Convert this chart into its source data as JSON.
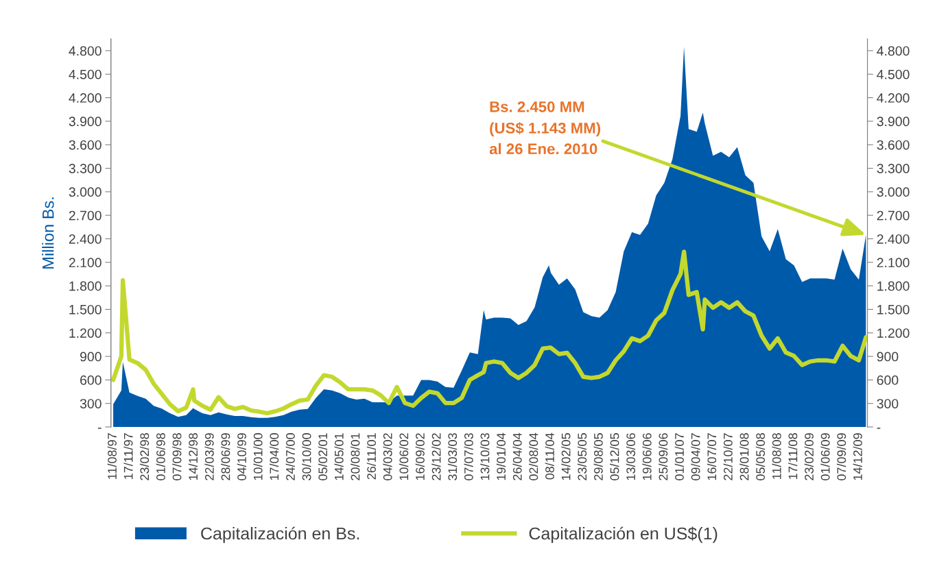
{
  "chart_data": {
    "type": "area",
    "ylabel": "Million Bs.",
    "x": [
      "1997-08-11",
      "1997-09-29",
      "1997-10-08",
      "1997-11-17",
      "1998-01-05",
      "1998-02-23",
      "1998-04-13",
      "1998-06-01",
      "1998-07-20",
      "1998-09-07",
      "1998-10-26",
      "1998-12-07",
      "1998-12-14",
      "1999-02-01",
      "1999-03-22",
      "1999-05-10",
      "1999-06-28",
      "1999-08-16",
      "1999-10-04",
      "1999-11-22",
      "2000-01-10",
      "2000-02-28",
      "2000-04-17",
      "2000-06-05",
      "2000-07-24",
      "2000-09-11",
      "2000-10-30",
      "2000-12-18",
      "2001-02-05",
      "2001-03-26",
      "2001-05-14",
      "2001-07-02",
      "2001-08-20",
      "2001-10-08",
      "2001-11-26",
      "2002-01-14",
      "2002-03-04",
      "2002-04-22",
      "2002-06-10",
      "2002-07-29",
      "2002-09-16",
      "2002-11-04",
      "2002-12-23",
      "2003-02-10",
      "2003-03-31",
      "2003-05-19",
      "2003-07-07",
      "2003-08-25",
      "2003-09-29",
      "2003-10-13",
      "2003-12-01",
      "2004-01-19",
      "2004-03-08",
      "2004-04-26",
      "2004-06-14",
      "2004-08-02",
      "2004-09-20",
      "2004-10-27",
      "2004-11-08",
      "2004-12-27",
      "2005-02-14",
      "2005-04-04",
      "2005-05-23",
      "2005-07-11",
      "2005-08-29",
      "2005-10-17",
      "2005-12-05",
      "2006-01-23",
      "2006-03-13",
      "2006-05-01",
      "2006-06-19",
      "2006-08-07",
      "2006-09-25",
      "2006-11-13",
      "2007-01-01",
      "2007-01-22",
      "2007-02-19",
      "2007-04-09",
      "2007-05-16",
      "2007-05-28",
      "2007-07-16",
      "2007-09-03",
      "2007-10-22",
      "2007-12-10",
      "2008-01-28",
      "2008-03-17",
      "2008-05-05",
      "2008-06-23",
      "2008-08-11",
      "2008-09-29",
      "2008-11-17",
      "2009-01-05",
      "2009-02-23",
      "2009-04-13",
      "2009-06-01",
      "2009-07-20",
      "2009-09-07",
      "2009-10-26",
      "2009-12-14",
      "2010-01-26"
    ],
    "series": [
      {
        "name": "Capitalización en Bs.",
        "color": "#005aaa",
        "values": [
          290,
          465,
          830,
          440,
          395,
          360,
          270,
          235,
          175,
          130,
          150,
          240,
          230,
          175,
          150,
          185,
          160,
          140,
          140,
          125,
          115,
          115,
          130,
          150,
          195,
          220,
          230,
          370,
          480,
          465,
          430,
          375,
          350,
          360,
          315,
          315,
          315,
          400,
          400,
          400,
          600,
          600,
          580,
          510,
          500,
          720,
          950,
          930,
          1490,
          1370,
          1395,
          1395,
          1385,
          1300,
          1350,
          1525,
          1910,
          2060,
          1965,
          1815,
          1895,
          1755,
          1465,
          1415,
          1395,
          1490,
          1720,
          2240,
          2485,
          2450,
          2595,
          2955,
          3115,
          3415,
          3970,
          4850,
          3800,
          3765,
          4010,
          3870,
          3460,
          3510,
          3440,
          3570,
          3210,
          3115,
          2430,
          2240,
          2525,
          2140,
          2060,
          1850,
          1895,
          1895,
          1895,
          1880,
          2275,
          2010,
          1880,
          2450
        ]
      },
      {
        "name": "Capitalización en US$(1)",
        "type": "line",
        "axis": "y2",
        "color": "#c3d82e",
        "values": [
          600,
          900,
          1870,
          860,
          815,
          730,
          550,
          420,
          290,
          200,
          245,
          480,
          335,
          270,
          220,
          380,
          265,
          230,
          255,
          210,
          195,
          175,
          200,
          235,
          290,
          335,
          350,
          525,
          660,
          640,
          570,
          480,
          480,
          480,
          465,
          405,
          305,
          510,
          305,
          270,
          370,
          450,
          430,
          305,
          305,
          370,
          600,
          660,
          700,
          815,
          835,
          815,
          690,
          625,
          690,
          790,
          1000,
          1010,
          1010,
          930,
          945,
          815,
          640,
          625,
          640,
          690,
          850,
          965,
          1130,
          1095,
          1165,
          1360,
          1455,
          1745,
          1950,
          2235,
          1685,
          1720,
          1245,
          1625,
          1520,
          1590,
          1520,
          1590,
          1475,
          1420,
          1165,
          1000,
          1130,
          950,
          905,
          790,
          835,
          850,
          850,
          835,
          1035,
          905,
          850,
          1143
        ]
      }
    ],
    "annotations": [
      {
        "text": "Bs. 2.450 MM\n(US$ 1.143 MM)\nal 26 Ene. 2010",
        "x": "2010-01-26",
        "y": 2450
      }
    ],
    "xlim": [
      "1997-07-28",
      "2010-02-04"
    ],
    "xticks": [
      {
        "value": "1997-08-11",
        "label": "11/08/97"
      },
      {
        "value": "1997-11-17",
        "label": "17/11/97"
      },
      {
        "value": "1998-02-23",
        "label": "23/02/98"
      },
      {
        "value": "1998-06-01",
        "label": "01/06/98"
      },
      {
        "value": "1998-09-07",
        "label": "07/09/98"
      },
      {
        "value": "1998-12-14",
        "label": "14/12/98"
      },
      {
        "value": "1999-03-22",
        "label": "22/03/99"
      },
      {
        "value": "1999-06-28",
        "label": "28/06/99"
      },
      {
        "value": "1999-10-04",
        "label": "04/10/99"
      },
      {
        "value": "2000-01-10",
        "label": "10/01/00"
      },
      {
        "value": "2000-04-17",
        "label": "17/04/00"
      },
      {
        "value": "2000-07-24",
        "label": "24/07/00"
      },
      {
        "value": "2000-10-30",
        "label": "30/10/00"
      },
      {
        "value": "2001-02-05",
        "label": "05/02/01"
      },
      {
        "value": "2001-05-14",
        "label": "14/05/01"
      },
      {
        "value": "2001-08-20",
        "label": "20/08/01"
      },
      {
        "value": "2001-11-26",
        "label": "26/11/01"
      },
      {
        "value": "2002-03-04",
        "label": "04/03/02"
      },
      {
        "value": "2002-06-10",
        "label": "10/06/02"
      },
      {
        "value": "2002-09-16",
        "label": "16/09/02"
      },
      {
        "value": "2002-12-23",
        "label": "23/12/02"
      },
      {
        "value": "2003-03-31",
        "label": "31/03/03"
      },
      {
        "value": "2003-07-07",
        "label": "07/07/03"
      },
      {
        "value": "2003-10-13",
        "label": "13/10/03"
      },
      {
        "value": "2004-01-19",
        "label": "19/01/04"
      },
      {
        "value": "2004-04-26",
        "label": "26/04/04"
      },
      {
        "value": "2004-08-02",
        "label": "02/08/04"
      },
      {
        "value": "2004-11-08",
        "label": "08/11/04"
      },
      {
        "value": "2005-02-14",
        "label": "14/02/05"
      },
      {
        "value": "2005-05-23",
        "label": "23/05/05"
      },
      {
        "value": "2005-08-29",
        "label": "29/08/05"
      },
      {
        "value": "2005-12-05",
        "label": "05/12/05"
      },
      {
        "value": "2006-03-13",
        "label": "13/03/06"
      },
      {
        "value": "2006-06-19",
        "label": "19/06/06"
      },
      {
        "value": "2006-09-25",
        "label": "25/09/06"
      },
      {
        "value": "2007-01-01",
        "label": "01/01/07"
      },
      {
        "value": "2007-04-09",
        "label": "09/04/07"
      },
      {
        "value": "2007-07-16",
        "label": "16/07/07"
      },
      {
        "value": "2007-10-22",
        "label": "22/10/07"
      },
      {
        "value": "2008-01-28",
        "label": "28/01/08"
      },
      {
        "value": "2008-05-05",
        "label": "05/05/08"
      },
      {
        "value": "2008-08-11",
        "label": "11/08/08"
      },
      {
        "value": "2008-11-17",
        "label": "17/11/08"
      },
      {
        "value": "2009-02-23",
        "label": "23/02/09"
      },
      {
        "value": "2009-06-01",
        "label": "01/06/09"
      },
      {
        "value": "2009-09-07",
        "label": "07/09/09"
      },
      {
        "value": "2009-12-14",
        "label": "14/12/09"
      }
    ],
    "ylim": [
      0,
      4950
    ],
    "yticks": [
      {
        "value": 0,
        "label": "-"
      },
      {
        "value": 300,
        "label": "300"
      },
      {
        "value": 600,
        "label": "600"
      },
      {
        "value": 900,
        "label": "900"
      },
      {
        "value": 1200,
        "label": "1.200"
      },
      {
        "value": 1500,
        "label": "1.500"
      },
      {
        "value": 1800,
        "label": "1.800"
      },
      {
        "value": 2100,
        "label": "2.100"
      },
      {
        "value": 2400,
        "label": "2.400"
      },
      {
        "value": 2700,
        "label": "2.700"
      },
      {
        "value": 3000,
        "label": "3.000"
      },
      {
        "value": 3300,
        "label": "3.300"
      },
      {
        "value": 3600,
        "label": "3.600"
      },
      {
        "value": 3900,
        "label": "3.900"
      },
      {
        "value": 4200,
        "label": "4.200"
      },
      {
        "value": 4500,
        "label": "4.500"
      },
      {
        "value": 4800,
        "label": "4.800"
      }
    ],
    "y2lim": [
      0,
      4950
    ],
    "y2ticks": [
      {
        "value": 0,
        "label": "-"
      },
      {
        "value": 300,
        "label": "300"
      },
      {
        "value": 600,
        "label": "600"
      },
      {
        "value": 900,
        "label": "900"
      },
      {
        "value": 1200,
        "label": "1.200"
      },
      {
        "value": 1500,
        "label": "1.500"
      },
      {
        "value": 1800,
        "label": "1.800"
      },
      {
        "value": 2100,
        "label": "2.100"
      },
      {
        "value": 2400,
        "label": "2.400"
      },
      {
        "value": 2700,
        "label": "2.700"
      },
      {
        "value": 3000,
        "label": "3.000"
      },
      {
        "value": 3300,
        "label": "3.300"
      },
      {
        "value": 3600,
        "label": "3.600"
      },
      {
        "value": 3900,
        "label": "3.900"
      },
      {
        "value": 4200,
        "label": "4.200"
      },
      {
        "value": 4500,
        "label": "4.500"
      },
      {
        "value": 4800,
        "label": "4.800"
      }
    ],
    "grid": false,
    "legend": "bottom"
  }
}
